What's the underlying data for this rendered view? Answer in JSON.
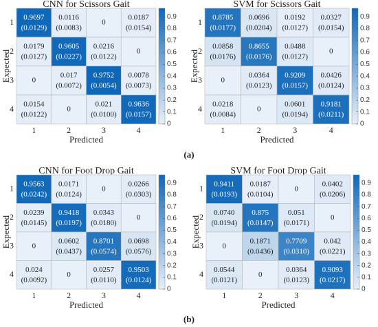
{
  "captions": [
    "(a)",
    "(b)"
  ],
  "chart_data": [
    {
      "type": "heatmap",
      "title": "CNN for Scissors Gait",
      "x_label": "Predicted",
      "y_label": "Expected",
      "x_categories": [
        "1",
        "2",
        "3",
        "4"
      ],
      "y_categories": [
        "1",
        "2",
        "3",
        "4"
      ],
      "values": [
        [
          0.9697,
          0.0116,
          0,
          0.0187
        ],
        [
          0.0179,
          0.9605,
          0.0216,
          0
        ],
        [
          0,
          0.017,
          0.9752,
          0.0078
        ],
        [
          0.0154,
          0,
          0.021,
          0.9636
        ]
      ],
      "value_labels": [
        [
          "0.9697",
          "0.0116",
          "0",
          "0.0187"
        ],
        [
          "0.0179",
          "0.9605",
          "0.0216",
          "0"
        ],
        [
          "0",
          "0.017",
          "0.9752",
          "0.0078"
        ],
        [
          "0.0154",
          "0",
          "0.021",
          "0.9636"
        ]
      ],
      "stds": [
        [
          0.0129,
          0.0083,
          null,
          0.0154
        ],
        [
          0.0127,
          0.0227,
          0.0122,
          null
        ],
        [
          null,
          0.0072,
          0.0054,
          0.0073
        ],
        [
          0.0122,
          null,
          0.01,
          0.0157
        ]
      ],
      "std_labels": [
        [
          "(0.0129)",
          "(0.0083)",
          null,
          "(0.0154)"
        ],
        [
          "(0.0127)",
          "(0.0227)",
          "(0.0122)",
          null
        ],
        [
          null,
          "(0.0072)",
          "(0.0054)",
          "(0.0073)"
        ],
        [
          "(0.0122)",
          null,
          "(0.0100)",
          "(0.0157)"
        ]
      ],
      "clim": [
        0,
        0.97
      ],
      "cticks": [
        0,
        0.1,
        0.2,
        0.3,
        0.4,
        0.5,
        0.6,
        0.7,
        0.8,
        0.9
      ],
      "colors": [
        "#e8f0f9",
        "#1068b8"
      ]
    },
    {
      "type": "heatmap",
      "title": "SVM for Scissors Gait",
      "x_label": "Predicted",
      "y_label": "Expected",
      "x_categories": [
        "1",
        "2",
        "3",
        "4"
      ],
      "y_categories": [
        "1",
        "2",
        "3",
        "4"
      ],
      "values": [
        [
          0.8785,
          0.0696,
          0.0192,
          0.0327
        ],
        [
          0.0858,
          0.8655,
          0.0488,
          0
        ],
        [
          0,
          0.0364,
          0.9209,
          0.0426
        ],
        [
          0.0218,
          0,
          0.0601,
          0.9181
        ]
      ],
      "value_labels": [
        [
          "0.8785",
          "0.0696",
          "0.0192",
          "0.0327"
        ],
        [
          "0.0858",
          "0.8655",
          "0.0488",
          "0"
        ],
        [
          "0",
          "0.0364",
          "0.9209",
          "0.0426"
        ],
        [
          "0.0218",
          "0",
          "0.0601",
          "0.9181"
        ]
      ],
      "stds": [
        [
          0.0177,
          0.0204,
          0.0127,
          0.0154
        ],
        [
          0.0176,
          0.0176,
          0.0127,
          null
        ],
        [
          null,
          0.0123,
          0.0157,
          0.0124
        ],
        [
          0.0084,
          null,
          0.0194,
          0.0211
        ]
      ],
      "std_labels": [
        [
          "(0.0177)",
          "(0.0204)",
          "(0.0127)",
          "(0.0154)"
        ],
        [
          "(0.0176)",
          "(0.0176)",
          "(0.0127)",
          null
        ],
        [
          null,
          "(0.0123)",
          "(0.0157)",
          "(0.0124)"
        ],
        [
          "(0.0084)",
          null,
          "(0.0194)",
          "(0.0211)"
        ]
      ],
      "clim": [
        0,
        0.97
      ],
      "cticks": [
        0,
        0.1,
        0.2,
        0.3,
        0.4,
        0.5,
        0.6,
        0.7,
        0.8,
        0.9
      ],
      "colors": [
        "#e8f0f9",
        "#1068b8"
      ]
    },
    {
      "type": "heatmap",
      "title": "CNN for Foot Drop Gait",
      "x_label": "Predicted",
      "y_label": "Expected",
      "x_categories": [
        "1",
        "2",
        "3",
        "4"
      ],
      "y_categories": [
        "1",
        "2",
        "3",
        "4"
      ],
      "values": [
        [
          0.9563,
          0.0171,
          0,
          0.0266
        ],
        [
          0.0239,
          0.9418,
          0.0343,
          0
        ],
        [
          0,
          0.0602,
          0.8701,
          0.0698
        ],
        [
          0.024,
          0,
          0.0257,
          0.9503
        ]
      ],
      "value_labels": [
        [
          "0.9563",
          "0.0171",
          "0",
          "0.0266"
        ],
        [
          "0.0239",
          "0.9418",
          "0.0343",
          "0"
        ],
        [
          "0",
          "0.0602",
          "0.8701",
          "0.0698"
        ],
        [
          "0.024",
          "0",
          "0.0257",
          "0.9503"
        ]
      ],
      "stds": [
        [
          0.0242,
          0.0124,
          null,
          0.0303
        ],
        [
          0.0145,
          0.0197,
          0.018,
          null
        ],
        [
          null,
          0.0437,
          0.0574,
          0.0576
        ],
        [
          0.0092,
          null,
          0.011,
          0.0124
        ]
      ],
      "std_labels": [
        [
          "(0.0242)",
          "(0.0124)",
          null,
          "(0.0303)"
        ],
        [
          "(0.0145)",
          "(0.0197)",
          "(0.0180)",
          null
        ],
        [
          null,
          "(0.0437)",
          "(0.0574)",
          "(0.0576)"
        ],
        [
          "(0.0092)",
          null,
          "(0.0110)",
          "(0.0124)"
        ]
      ],
      "clim": [
        0,
        0.97
      ],
      "cticks": [
        0,
        0.1,
        0.2,
        0.3,
        0.4,
        0.5,
        0.6,
        0.7,
        0.8,
        0.9
      ],
      "colors": [
        "#e8f0f9",
        "#1068b8"
      ]
    },
    {
      "type": "heatmap",
      "title": "SVM for Foot Drop Gait",
      "x_label": "Predicted",
      "y_label": "Expected",
      "x_categories": [
        "1",
        "2",
        "3",
        "4"
      ],
      "y_categories": [
        "1",
        "2",
        "3",
        "4"
      ],
      "values": [
        [
          0.9411,
          0.0187,
          0,
          0.0402
        ],
        [
          0.074,
          0.875,
          0.051,
          0
        ],
        [
          0,
          0.1871,
          0.7709,
          0.042
        ],
        [
          0.0544,
          0,
          0.0364,
          0.9093
        ]
      ],
      "value_labels": [
        [
          "0.9411",
          "0.0187",
          "0",
          "0.0402"
        ],
        [
          "0.0740",
          "0.875",
          "0.051",
          "0"
        ],
        [
          "0",
          "0.1871",
          "0.7709",
          "0.042"
        ],
        [
          "0.0544",
          "0",
          "0.0364",
          "0.9093"
        ]
      ],
      "stds": [
        [
          0.0193,
          0.0104,
          null,
          0.0206
        ],
        [
          0.0194,
          0.0147,
          0.0171,
          null
        ],
        [
          null,
          0.0436,
          0.031,
          0.0221
        ],
        [
          0.0121,
          null,
          0.0123,
          0.0217
        ]
      ],
      "std_labels": [
        [
          "(0.0193)",
          "(0.0104)",
          null,
          "(0.0206)"
        ],
        [
          "(0.0194)",
          "(0.0147)",
          "(0.0171)",
          null
        ],
        [
          null,
          "(0.0436)",
          "(0.0310)",
          "(0.0221)"
        ],
        [
          "(0.0121)",
          null,
          "(0.0123)",
          "(0.0217)"
        ]
      ],
      "clim": [
        0,
        0.97
      ],
      "cticks": [
        0,
        0.1,
        0.2,
        0.3,
        0.4,
        0.5,
        0.6,
        0.7,
        0.8,
        0.9
      ],
      "colors": [
        "#e8f0f9",
        "#1068b8"
      ]
    }
  ]
}
